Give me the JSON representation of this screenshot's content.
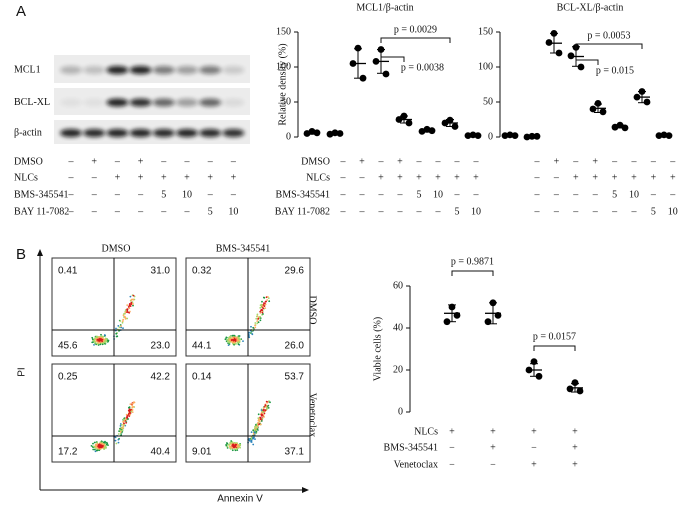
{
  "panel_labels": [
    "A",
    "B"
  ],
  "blot": {
    "proteins": [
      "MCL1",
      "BCL-XL",
      "β-actin"
    ],
    "conditions": [
      {
        "label": "DMSO",
        "marks": [
          "–",
          "+",
          "–",
          "+",
          "–",
          "–",
          "–",
          "–"
        ]
      },
      {
        "label": "NLCs",
        "marks": [
          "–",
          "–",
          "+",
          "+",
          "+",
          "+",
          "+",
          "+"
        ]
      },
      {
        "label": "BMS-345541",
        "marks": [
          "–",
          "–",
          "–",
          "–",
          "5",
          "10",
          "–",
          "–"
        ]
      },
      {
        "label": "BAY 11-7082",
        "marks": [
          "–",
          "–",
          "–",
          "–",
          "–",
          "–",
          "5",
          "10"
        ]
      }
    ]
  },
  "chart_data": [
    {
      "type": "dot",
      "title": "MCL1/β-actin",
      "y_label": "Relative density (%)",
      "color": "#000000",
      "ylim": [
        0,
        150
      ],
      "yticks": [
        0,
        50,
        100,
        150
      ],
      "values": [
        [
          8,
          5,
          6
        ],
        [
          6,
          4,
          5
        ],
        [
          127,
          105,
          84
        ],
        [
          125,
          108,
          90
        ],
        [
          30,
          25,
          20
        ],
        [
          11,
          8,
          9
        ],
        [
          24,
          20,
          15
        ],
        [
          3,
          2,
          2
        ]
      ],
      "means": [
        6,
        5,
        105,
        108,
        25,
        9,
        20,
        2
      ],
      "sds": [
        2,
        1,
        21,
        17,
        5,
        2,
        5,
        1
      ],
      "annotations": [
        "p = 0.0029",
        "p = 0.0038"
      ],
      "conditions": [
        {
          "label": "DMSO",
          "marks": [
            "–",
            "+",
            "–",
            "+",
            "–",
            "–",
            "–",
            "–"
          ]
        },
        {
          "label": "NLCs",
          "marks": [
            "–",
            "–",
            "+",
            "+",
            "+",
            "+",
            "+",
            "+"
          ]
        },
        {
          "label": "BMS-345541",
          "marks": [
            "–",
            "–",
            "–",
            "–",
            "5",
            "10",
            "–",
            "–"
          ]
        },
        {
          "label": "BAY 11-7082",
          "marks": [
            "–",
            "–",
            "–",
            "–",
            "–",
            "–",
            "5",
            "10"
          ]
        }
      ]
    },
    {
      "type": "dot",
      "title": "BCL-XL/β-actin",
      "color": "#000000",
      "ylim": [
        0,
        150
      ],
      "yticks": [
        0,
        50,
        100,
        150
      ],
      "values": [
        [
          3,
          2,
          2
        ],
        [
          1,
          0,
          1
        ],
        [
          148,
          135,
          120
        ],
        [
          128,
          116,
          100
        ],
        [
          48,
          40,
          36
        ],
        [
          17,
          14,
          13
        ],
        [
          65,
          57,
          50
        ],
        [
          3,
          2,
          2
        ]
      ],
      "means": [
        2,
        1,
        134,
        115,
        41,
        15,
        57,
        2
      ],
      "sds": [
        1,
        1,
        14,
        14,
        6,
        2,
        8,
        1
      ],
      "annotations": [
        "p = 0.0053",
        "p = 0.015"
      ],
      "conditions": [
        {
          "marks": [
            "–",
            "+",
            "–",
            "+",
            "–",
            "–",
            "–",
            "–"
          ]
        },
        {
          "marks": [
            "–",
            "–",
            "+",
            "+",
            "+",
            "+",
            "+",
            "+"
          ]
        },
        {
          "marks": [
            "–",
            "–",
            "–",
            "–",
            "5",
            "10",
            "–",
            "–"
          ]
        },
        {
          "marks": [
            "–",
            "–",
            "–",
            "–",
            "–",
            "–",
            "5",
            "10"
          ]
        }
      ]
    },
    {
      "type": "dot",
      "y_label": "Viable cells (%)",
      "color": "#000000",
      "ylim": [
        0,
        60
      ],
      "yticks": [
        0,
        20,
        40,
        60
      ],
      "values": [
        [
          50,
          43,
          46
        ],
        [
          52,
          43,
          46
        ],
        [
          24,
          20,
          17
        ],
        [
          14,
          11,
          10
        ]
      ],
      "means": [
        47,
        47,
        20,
        11.5
      ],
      "sds": [
        4,
        5,
        3,
        2
      ],
      "annotations": [
        "p = 0.9871",
        "p = 0.0157"
      ],
      "conditions": [
        {
          "label": "NLCs",
          "marks": [
            "+",
            "+",
            "+",
            "+"
          ]
        },
        {
          "label": "BMS-345541",
          "marks": [
            "−",
            "+",
            "−",
            "+"
          ]
        },
        {
          "label": "Venetoclax",
          "marks": [
            "−",
            "−",
            "+",
            "+"
          ]
        }
      ]
    }
  ],
  "flow": {
    "column_labels": [
      "DMSO",
      "BMS-345541"
    ],
    "row_labels": [
      "DMSO",
      "Venetoclax"
    ],
    "y_label": "PI",
    "x_label": "Annexin V",
    "plots": [
      {
        "quadrants": [
          "0.41",
          "31.0",
          "45.6",
          "23.0"
        ]
      },
      {
        "quadrants": [
          "0.32",
          "29.6",
          "44.1",
          "26.0"
        ]
      },
      {
        "quadrants": [
          "0.25",
          "42.2",
          "17.2",
          "40.4"
        ]
      },
      {
        "quadrants": [
          "0.14",
          "53.7",
          "9.01",
          "37.1"
        ]
      }
    ]
  }
}
